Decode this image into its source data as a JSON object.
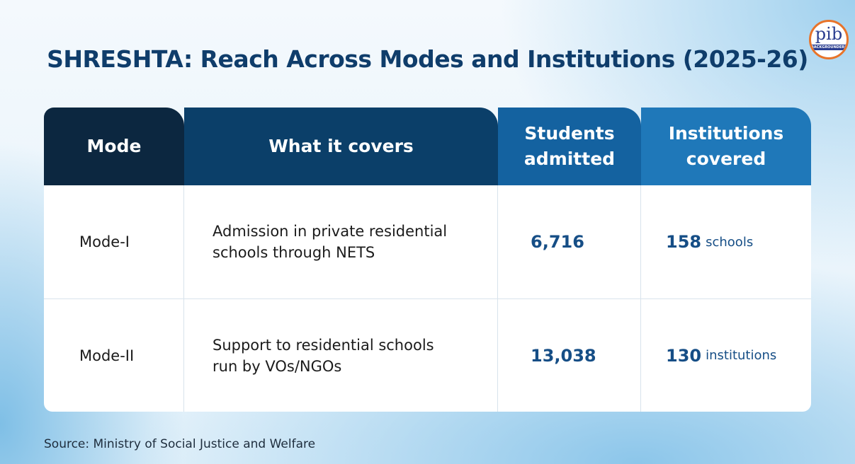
{
  "header": {
    "title": "SHRESHTA: Reach Across Modes and Institutions (2025-26)",
    "logo": {
      "text": "pib",
      "subtext": "BACKGROUNDERS"
    }
  },
  "table": {
    "columns": [
      "Mode",
      "What it covers",
      "Students admitted",
      "Institutions covered"
    ],
    "rows": [
      {
        "mode": "Mode-I",
        "covers": "Admission in private residential schools through NETS",
        "students": "6,716",
        "institutions": {
          "count": "158",
          "unit": "schools"
        }
      },
      {
        "mode": "Mode-II",
        "covers": "Support to residential schools run by VOs/NGOs",
        "students": "13,038",
        "institutions": {
          "count": "130",
          "unit": "institutions"
        }
      }
    ]
  },
  "footer": {
    "source": "Source: Ministry of Social Justice and Welfare"
  }
}
